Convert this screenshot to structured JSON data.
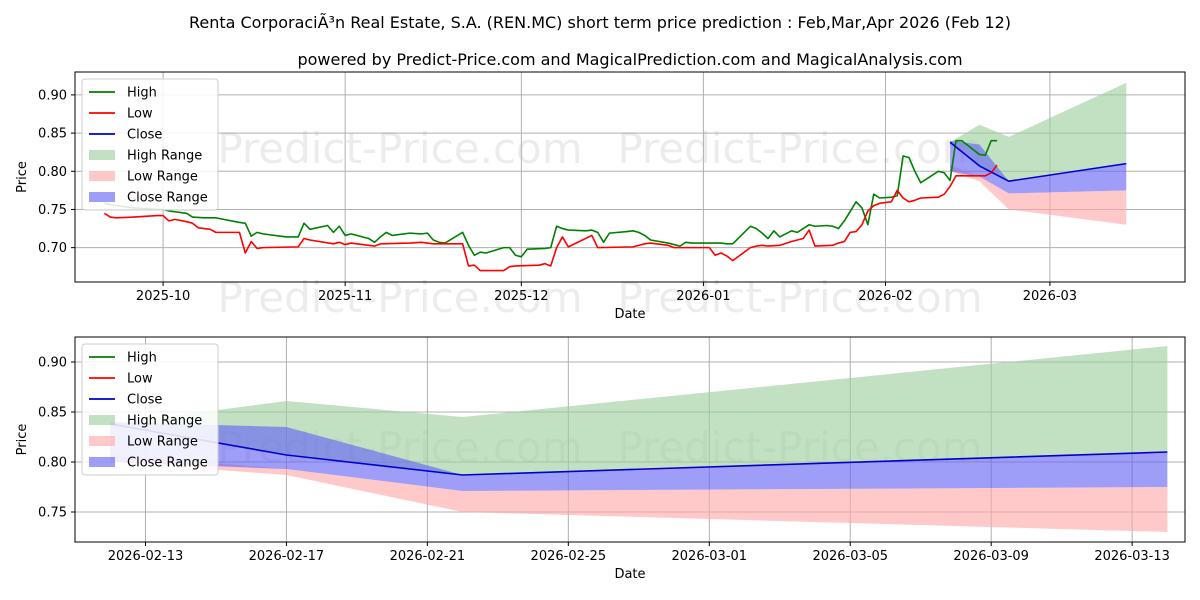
{
  "title": "Renta CorporaciÃ³n Real Estate, S.A. (REN.MC) short term price prediction : Feb,Mar,Apr 2026 (Feb 12)",
  "subtitle": "powered by Predict-Price.com and MagicalPrediction.com and MagicalAnalysis.com",
  "watermark": "Predict-Price.com",
  "colors": {
    "high": "#008000",
    "low": "#ff0000",
    "close": "#0000cd",
    "high_range": "#9ccf9c",
    "low_range": "#ffa8a8",
    "close_range": "#6262f5"
  },
  "chart_data": [
    {
      "type": "line",
      "xlabel": "Date",
      "ylabel": "Price",
      "ylim": [
        0.655,
        0.93
      ],
      "yticks": [
        0.7,
        0.75,
        0.8,
        0.85,
        0.9
      ],
      "ytick_labels": [
        "0.70",
        "0.75",
        "0.80",
        "0.85",
        "0.90"
      ],
      "xrange": [
        "2025-09-16",
        "2026-03-24"
      ],
      "xticks": [
        "2025-10-01",
        "2025-11-01",
        "2025-12-01",
        "2026-01-01",
        "2026-02-01",
        "2026-03-01"
      ],
      "xtick_labels": [
        "2025-10",
        "2025-11",
        "2025-12",
        "2026-01",
        "2026-02",
        "2026-03"
      ],
      "legend": [
        "High",
        "Low",
        "Close",
        "High Range",
        "Low Range",
        "Close Range"
      ],
      "legend_position": "top-left",
      "grid": true,
      "high": [
        [
          "2025-09-21",
          0.758
        ],
        [
          "2025-09-23",
          0.755
        ],
        [
          "2025-09-26",
          0.752
        ],
        [
          "2025-09-30",
          0.75
        ],
        [
          "2025-10-01",
          0.75
        ],
        [
          "2025-10-02",
          0.748
        ],
        [
          "2025-10-05",
          0.745
        ],
        [
          "2025-10-06",
          0.74
        ],
        [
          "2025-10-08",
          0.739
        ],
        [
          "2025-10-10",
          0.739
        ],
        [
          "2025-10-14",
          0.733
        ],
        [
          "2025-10-15",
          0.732
        ],
        [
          "2025-10-16",
          0.715
        ],
        [
          "2025-10-17",
          0.72
        ],
        [
          "2025-10-18",
          0.718
        ],
        [
          "2025-10-22",
          0.714
        ],
        [
          "2025-10-24",
          0.714
        ],
        [
          "2025-10-25",
          0.732
        ],
        [
          "2025-10-26",
          0.724
        ],
        [
          "2025-10-29",
          0.729
        ],
        [
          "2025-10-30",
          0.72
        ],
        [
          "2025-10-31",
          0.728
        ],
        [
          "2025-11-01",
          0.716
        ],
        [
          "2025-11-02",
          0.718
        ],
        [
          "2025-11-05",
          0.712
        ],
        [
          "2025-11-06",
          0.707
        ],
        [
          "2025-11-07",
          0.714
        ],
        [
          "2025-11-08",
          0.72
        ],
        [
          "2025-11-09",
          0.716
        ],
        [
          "2025-11-12",
          0.719
        ],
        [
          "2025-11-14",
          0.718
        ],
        [
          "2025-11-15",
          0.719
        ],
        [
          "2025-11-16",
          0.71
        ],
        [
          "2025-11-17",
          0.707
        ],
        [
          "2025-11-18",
          0.706
        ],
        [
          "2025-11-21",
          0.72
        ],
        [
          "2025-11-22",
          0.703
        ],
        [
          "2025-11-23",
          0.69
        ],
        [
          "2025-11-24",
          0.694
        ],
        [
          "2025-11-25",
          0.693
        ],
        [
          "2025-11-28",
          0.7
        ],
        [
          "2025-11-29",
          0.7
        ],
        [
          "2025-11-30",
          0.69
        ],
        [
          "2025-12-01",
          0.688
        ],
        [
          "2025-12-02",
          0.698
        ],
        [
          "2025-12-05",
          0.699
        ],
        [
          "2025-12-06",
          0.7
        ],
        [
          "2025-12-07",
          0.728
        ],
        [
          "2025-12-08",
          0.725
        ],
        [
          "2025-12-09",
          0.723
        ],
        [
          "2025-12-12",
          0.722
        ],
        [
          "2025-12-13",
          0.723
        ],
        [
          "2025-12-14",
          0.72
        ],
        [
          "2025-12-15",
          0.707
        ],
        [
          "2025-12-16",
          0.719
        ],
        [
          "2025-12-19",
          0.721
        ],
        [
          "2025-12-20",
          0.722
        ],
        [
          "2025-12-21",
          0.72
        ],
        [
          "2025-12-22",
          0.716
        ],
        [
          "2025-12-23",
          0.71
        ],
        [
          "2025-12-26",
          0.706
        ],
        [
          "2025-12-27",
          0.704
        ],
        [
          "2025-12-28",
          0.702
        ],
        [
          "2025-12-29",
          0.707
        ],
        [
          "2025-12-30",
          0.706
        ],
        [
          "2026-01-02",
          0.706
        ],
        [
          "2026-01-03",
          0.706
        ],
        [
          "2026-01-04",
          0.706
        ],
        [
          "2026-01-05",
          0.705
        ],
        [
          "2026-01-06",
          0.705
        ],
        [
          "2026-01-09",
          0.728
        ],
        [
          "2026-01-10",
          0.725
        ],
        [
          "2026-01-11",
          0.719
        ],
        [
          "2026-01-12",
          0.712
        ],
        [
          "2026-01-13",
          0.722
        ],
        [
          "2026-01-14",
          0.714
        ],
        [
          "2026-01-16",
          0.722
        ],
        [
          "2026-01-17",
          0.72
        ],
        [
          "2026-01-18",
          0.725
        ],
        [
          "2026-01-19",
          0.73
        ],
        [
          "2026-01-20",
          0.728
        ],
        [
          "2026-01-22",
          0.729
        ],
        [
          "2026-01-23",
          0.728
        ],
        [
          "2026-01-24",
          0.725
        ],
        [
          "2026-01-25",
          0.735
        ],
        [
          "2026-01-27",
          0.76
        ],
        [
          "2026-01-28",
          0.752
        ],
        [
          "2026-01-29",
          0.73
        ],
        [
          "2026-01-30",
          0.77
        ],
        [
          "2026-01-31",
          0.765
        ],
        [
          "2026-02-02",
          0.766
        ],
        [
          "2026-02-03",
          0.768
        ],
        [
          "2026-02-04",
          0.82
        ],
        [
          "2026-02-05",
          0.818
        ],
        [
          "2026-02-06",
          0.8
        ],
        [
          "2026-02-07",
          0.785
        ],
        [
          "2026-02-08",
          0.79
        ],
        [
          "2026-02-10",
          0.8
        ],
        [
          "2026-02-11",
          0.798
        ],
        [
          "2026-02-12",
          0.788
        ],
        [
          "2026-02-13",
          0.84
        ],
        [
          "2026-02-14",
          0.84
        ],
        [
          "2026-02-17",
          0.822
        ],
        [
          "2026-02-18",
          0.821
        ],
        [
          "2026-02-19",
          0.84
        ],
        [
          "2026-02-20",
          0.84
        ]
      ],
      "low": [
        [
          "2025-09-21",
          0.745
        ],
        [
          "2025-09-22",
          0.74
        ],
        [
          "2025-09-23",
          0.739
        ],
        [
          "2025-09-26",
          0.74
        ],
        [
          "2025-09-30",
          0.742
        ],
        [
          "2025-10-01",
          0.742
        ],
        [
          "2025-10-02",
          0.735
        ],
        [
          "2025-10-03",
          0.737
        ],
        [
          "2025-10-05",
          0.734
        ],
        [
          "2025-10-06",
          0.732
        ],
        [
          "2025-10-07",
          0.726
        ],
        [
          "2025-10-09",
          0.724
        ],
        [
          "2025-10-10",
          0.72
        ],
        [
          "2025-10-14",
          0.72
        ],
        [
          "2025-10-15",
          0.693
        ],
        [
          "2025-10-16",
          0.708
        ],
        [
          "2025-10-17",
          0.699
        ],
        [
          "2025-10-18",
          0.7
        ],
        [
          "2025-10-24",
          0.701
        ],
        [
          "2025-10-25",
          0.712
        ],
        [
          "2025-10-26",
          0.71
        ],
        [
          "2025-10-30",
          0.705
        ],
        [
          "2025-10-31",
          0.707
        ],
        [
          "2025-11-01",
          0.704
        ],
        [
          "2025-11-02",
          0.706
        ],
        [
          "2025-11-05",
          0.703
        ],
        [
          "2025-11-06",
          0.702
        ],
        [
          "2025-11-07",
          0.705
        ],
        [
          "2025-11-12",
          0.706
        ],
        [
          "2025-11-14",
          0.707
        ],
        [
          "2025-11-16",
          0.705
        ],
        [
          "2025-11-21",
          0.705
        ],
        [
          "2025-11-22",
          0.676
        ],
        [
          "2025-11-23",
          0.677
        ],
        [
          "2025-11-24",
          0.67
        ],
        [
          "2025-11-28",
          0.67
        ],
        [
          "2025-11-29",
          0.675
        ],
        [
          "2025-11-30",
          0.676
        ],
        [
          "2025-12-04",
          0.677
        ],
        [
          "2025-12-05",
          0.679
        ],
        [
          "2025-12-06",
          0.676
        ],
        [
          "2025-12-07",
          0.7
        ],
        [
          "2025-12-08",
          0.714
        ],
        [
          "2025-12-09",
          0.701
        ],
        [
          "2025-12-13",
          0.716
        ],
        [
          "2025-12-14",
          0.7
        ],
        [
          "2025-12-20",
          0.701
        ],
        [
          "2025-12-21",
          0.703
        ],
        [
          "2025-12-22",
          0.705
        ],
        [
          "2025-12-23",
          0.706
        ],
        [
          "2025-12-26",
          0.703
        ],
        [
          "2025-12-27",
          0.7
        ],
        [
          "2025-12-28",
          0.7
        ],
        [
          "2025-12-29",
          0.7
        ],
        [
          "2026-01-02",
          0.7
        ],
        [
          "2026-01-03",
          0.69
        ],
        [
          "2026-01-04",
          0.693
        ],
        [
          "2026-01-05",
          0.689
        ],
        [
          "2026-01-06",
          0.683
        ],
        [
          "2026-01-09",
          0.7
        ],
        [
          "2026-01-10",
          0.702
        ],
        [
          "2026-01-11",
          0.703
        ],
        [
          "2026-01-12",
          0.702
        ],
        [
          "2026-01-14",
          0.703
        ],
        [
          "2026-01-16",
          0.708
        ],
        [
          "2026-01-17",
          0.71
        ],
        [
          "2026-01-18",
          0.712
        ],
        [
          "2026-01-19",
          0.723
        ],
        [
          "2026-01-20",
          0.702
        ],
        [
          "2026-01-23",
          0.703
        ],
        [
          "2026-01-24",
          0.706
        ],
        [
          "2026-01-25",
          0.708
        ],
        [
          "2026-01-26",
          0.72
        ],
        [
          "2026-01-27",
          0.721
        ],
        [
          "2026-01-28",
          0.73
        ],
        [
          "2026-01-29",
          0.748
        ],
        [
          "2026-01-30",
          0.755
        ],
        [
          "2026-01-31",
          0.758
        ],
        [
          "2026-02-02",
          0.76
        ],
        [
          "2026-02-03",
          0.775
        ],
        [
          "2026-02-04",
          0.765
        ],
        [
          "2026-02-05",
          0.76
        ],
        [
          "2026-02-06",
          0.762
        ],
        [
          "2026-02-07",
          0.765
        ],
        [
          "2026-02-10",
          0.766
        ],
        [
          "2026-02-11",
          0.77
        ],
        [
          "2026-02-12",
          0.78
        ],
        [
          "2026-02-13",
          0.794
        ],
        [
          "2026-02-17",
          0.794
        ],
        [
          "2026-02-18",
          0.794
        ],
        [
          "2026-02-19",
          0.798
        ],
        [
          "2026-02-20",
          0.808
        ]
      ],
      "close": [
        [
          "2026-02-12",
          0.838
        ],
        [
          "2026-02-17",
          0.807
        ],
        [
          "2026-02-22",
          0.787
        ],
        [
          "2026-03-14",
          0.81
        ]
      ],
      "high_range": {
        "dates": [
          "2026-02-12",
          "2026-02-17",
          "2026-02-22",
          "2026-03-14"
        ],
        "upper": [
          0.838,
          0.861,
          0.845,
          0.916
        ],
        "lower": [
          0.838,
          0.807,
          0.787,
          0.81
        ]
      },
      "low_range": {
        "dates": [
          "2026-02-12",
          "2026-02-17",
          "2026-02-22",
          "2026-03-14"
        ],
        "upper": [
          0.808,
          0.793,
          0.771,
          0.775
        ],
        "lower": [
          0.8,
          0.787,
          0.75,
          0.73
        ]
      },
      "close_range": {
        "dates": [
          "2026-02-12",
          "2026-02-17",
          "2026-02-22",
          "2026-03-14"
        ],
        "upper": [
          0.84,
          0.835,
          0.787,
          0.81
        ],
        "lower": [
          0.8,
          0.793,
          0.771,
          0.775
        ]
      }
    },
    {
      "type": "line",
      "xlabel": "Date",
      "ylabel": "Price",
      "ylim": [
        0.72,
        0.925
      ],
      "yticks": [
        0.75,
        0.8,
        0.85,
        0.9
      ],
      "ytick_labels": [
        "0.75",
        "0.80",
        "0.85",
        "0.90"
      ],
      "xrange": [
        "2026-02-11",
        "2026-03-14T12:00"
      ],
      "xticks": [
        "2026-02-13",
        "2026-02-17",
        "2026-02-21",
        "2026-02-25",
        "2026-03-01",
        "2026-03-05",
        "2026-03-09",
        "2026-03-13"
      ],
      "xtick_labels": [
        "2026-02-13",
        "2026-02-17",
        "2026-02-21",
        "2026-02-25",
        "2026-03-01",
        "2026-03-05",
        "2026-03-09",
        "2026-03-13"
      ],
      "legend": [
        "High",
        "Low",
        "Close",
        "High Range",
        "Low Range",
        "Close Range"
      ],
      "legend_position": "top-left",
      "grid": true,
      "close": [
        [
          "2026-02-12",
          0.838
        ],
        [
          "2026-02-17",
          0.807
        ],
        [
          "2026-02-22",
          0.787
        ],
        [
          "2026-03-14",
          0.81
        ]
      ],
      "high_range": {
        "dates": [
          "2026-02-12",
          "2026-02-17",
          "2026-02-22",
          "2026-03-14"
        ],
        "upper": [
          0.838,
          0.861,
          0.845,
          0.916
        ],
        "lower": [
          0.838,
          0.807,
          0.787,
          0.81
        ]
      },
      "low_range": {
        "dates": [
          "2026-02-12",
          "2026-02-17",
          "2026-02-22",
          "2026-03-14"
        ],
        "upper": [
          0.808,
          0.793,
          0.771,
          0.775
        ],
        "lower": [
          0.8,
          0.787,
          0.75,
          0.73
        ]
      },
      "close_range": {
        "dates": [
          "2026-02-12",
          "2026-02-17",
          "2026-02-22",
          "2026-03-14"
        ],
        "upper": [
          0.84,
          0.835,
          0.787,
          0.81
        ],
        "lower": [
          0.8,
          0.793,
          0.771,
          0.775
        ]
      }
    }
  ]
}
